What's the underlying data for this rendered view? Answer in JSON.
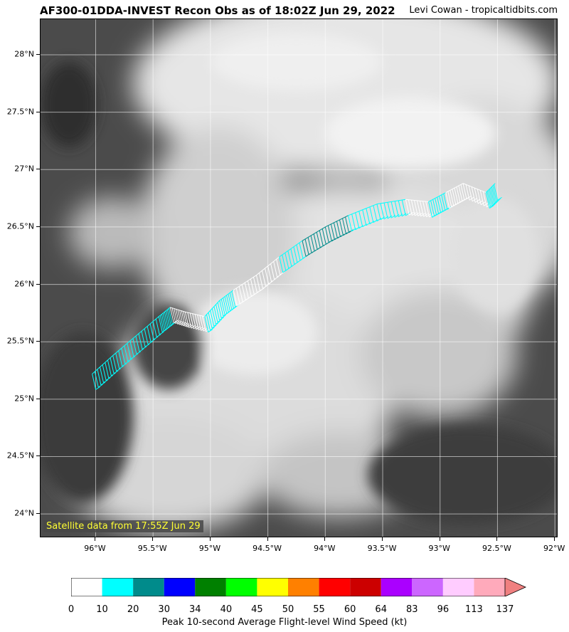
{
  "header": {
    "title": "AF300-01DDA-INVEST Recon Obs as of 18:02Z Jun 29, 2022",
    "credit": "Levi Cowan - tropicaltidbits.com"
  },
  "map": {
    "lon_range": [
      -96.48,
      -91.97
    ],
    "lat_range": [
      23.79,
      28.31
    ],
    "lat_ticks": [
      {
        "value": 24.0,
        "label": "24°N"
      },
      {
        "value": 24.5,
        "label": "24.5°N"
      },
      {
        "value": 25.0,
        "label": "25°N"
      },
      {
        "value": 25.5,
        "label": "25.5°N"
      },
      {
        "value": 26.0,
        "label": "26°N"
      },
      {
        "value": 26.5,
        "label": "26.5°N"
      },
      {
        "value": 27.0,
        "label": "27°N"
      },
      {
        "value": 27.5,
        "label": "27.5°N"
      },
      {
        "value": 28.0,
        "label": "28°N"
      }
    ],
    "lon_ticks": [
      {
        "value": -96.0,
        "label": "96°W"
      },
      {
        "value": -95.5,
        "label": "95.5°W"
      },
      {
        "value": -95.0,
        "label": "95°W"
      },
      {
        "value": -94.5,
        "label": "94.5°W"
      },
      {
        "value": -94.0,
        "label": "94°W"
      },
      {
        "value": -93.5,
        "label": "93.5°W"
      },
      {
        "value": -93.0,
        "label": "93°W"
      },
      {
        "value": -92.5,
        "label": "92.5°W"
      },
      {
        "value": -92.0,
        "label": "92°W"
      }
    ],
    "grid": true,
    "satellite_note": "Satellite data from 17:55Z Jun 29",
    "flight_track": [
      {
        "lon": -96.03,
        "lat": 25.22,
        "color": "#00ffff"
      },
      {
        "lon": -95.85,
        "lat": 25.38,
        "color": "#00ffff"
      },
      {
        "lon": -95.65,
        "lat": 25.55,
        "color": "#00ffff"
      },
      {
        "lon": -95.45,
        "lat": 25.72,
        "color": "#00ffff"
      },
      {
        "lon": -95.35,
        "lat": 25.8,
        "color": "#ffffff"
      },
      {
        "lon": -95.22,
        "lat": 25.76,
        "color": "#ffffff"
      },
      {
        "lon": -95.05,
        "lat": 25.72,
        "color": "#00ffff"
      },
      {
        "lon": -94.92,
        "lat": 25.86,
        "color": "#00ffff"
      },
      {
        "lon": -94.8,
        "lat": 25.95,
        "color": "#ffffff"
      },
      {
        "lon": -94.6,
        "lat": 26.08,
        "color": "#ffffff"
      },
      {
        "lon": -94.4,
        "lat": 26.24,
        "color": "#00ffff"
      },
      {
        "lon": -94.2,
        "lat": 26.38,
        "color": "#008b8b"
      },
      {
        "lon": -94.0,
        "lat": 26.5,
        "color": "#008b8b"
      },
      {
        "lon": -93.8,
        "lat": 26.6,
        "color": "#00ffff"
      },
      {
        "lon": -93.55,
        "lat": 26.7,
        "color": "#00ffff"
      },
      {
        "lon": -93.3,
        "lat": 26.74,
        "color": "#ffffff"
      },
      {
        "lon": -93.1,
        "lat": 26.72,
        "color": "#00ffff"
      },
      {
        "lon": -92.95,
        "lat": 26.8,
        "color": "#ffffff"
      },
      {
        "lon": -92.8,
        "lat": 26.88,
        "color": "#ffffff"
      },
      {
        "lon": -92.6,
        "lat": 26.8,
        "color": "#00ffff"
      },
      {
        "lon": -92.52,
        "lat": 26.88,
        "color": "#008b8b"
      }
    ]
  },
  "colorbar": {
    "label": "Peak 10-second Average Flight-level Wind Speed (kt)",
    "ticks": [
      "0",
      "10",
      "20",
      "30",
      "34",
      "40",
      "45",
      "50",
      "55",
      "60",
      "64",
      "83",
      "96",
      "113",
      "137"
    ],
    "colors": [
      "#ffffff",
      "#00ffff",
      "#008b8b",
      "#0000ff",
      "#008000",
      "#00ff00",
      "#ffff00",
      "#ff8000",
      "#ff0000",
      "#cc0000",
      "#aa00ff",
      "#cc66ff",
      "#ffccff",
      "#ffaabb",
      "#f08080"
    ]
  }
}
